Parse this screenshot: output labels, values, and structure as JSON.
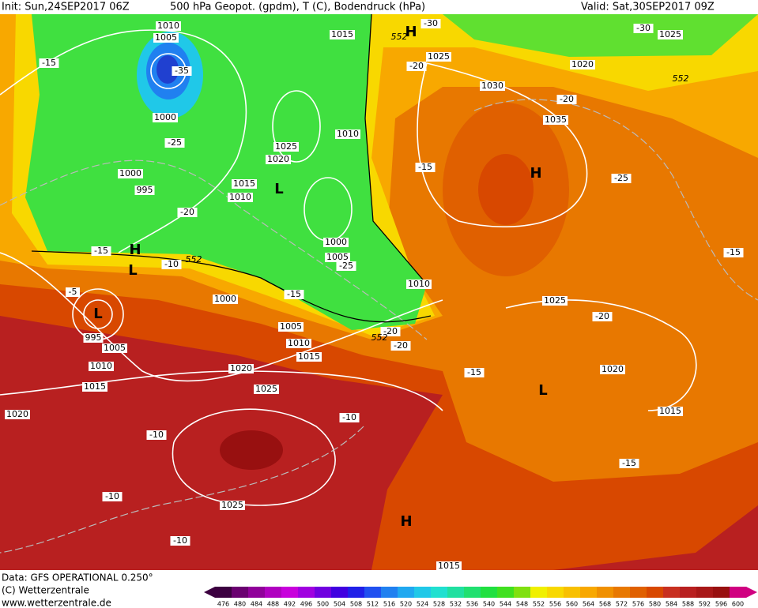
{
  "header": {
    "init": "Init: Sun,24SEP2017 06Z",
    "title": "500 hPa Geopot. (gpdm), T (C), Bodendruck (hPa)",
    "valid": "Valid: Sat,30SEP2017 09Z"
  },
  "map": {
    "pressure_labels": [
      "1010",
      "1005",
      "1015",
      "1025",
      "1025",
      "1020",
      "1030",
      "1035",
      "1000",
      "1025",
      "1020",
      "1010",
      "1000",
      "995",
      "1015",
      "1010",
      "1000",
      "1005",
      "1010",
      "1000",
      "1025",
      "1005",
      "1010",
      "1015",
      "995",
      "1005",
      "1010",
      "1020",
      "1020",
      "1015",
      "1025",
      "1015",
      "1020",
      "1025",
      "1015"
    ],
    "temperature_labels": [
      "-15",
      "-30",
      "-30",
      "-35",
      "-25",
      "-20",
      "-15",
      "-10",
      "-5",
      "-20",
      "-20",
      "-15",
      "-25",
      "-25",
      "-15",
      "-20",
      "-20",
      "-20",
      "-15",
      "-10",
      "-10",
      "-10",
      "-15",
      "-10",
      "-15"
    ],
    "height_labels": [
      "552",
      "552",
      "552",
      "552"
    ],
    "centers": [
      "H",
      "H",
      "L",
      "H",
      "L",
      "L",
      "L",
      "H"
    ]
  },
  "footer": {
    "source": "Data: GFS OPERATIONAL 0.250°",
    "copyright": "(C) Wetterzentrale",
    "url": "www.wetterzentrale.de"
  },
  "colorbar": {
    "labels": [
      476,
      480,
      484,
      488,
      492,
      496,
      500,
      504,
      508,
      512,
      516,
      520,
      524,
      528,
      532,
      536,
      540,
      544,
      548,
      552,
      556,
      560,
      564,
      568,
      572,
      576,
      580,
      584,
      588,
      592,
      596,
      600
    ],
    "colors": [
      "#3c0040",
      "#6a0070",
      "#90009a",
      "#b000c0",
      "#c800dc",
      "#a000e0",
      "#7000e0",
      "#4000e0",
      "#2020e8",
      "#2050f0",
      "#2080f0",
      "#20a8f0",
      "#20c8e8",
      "#20e0d0",
      "#20e0a0",
      "#20e070",
      "#20e040",
      "#40e020",
      "#80e010",
      "#f0f000",
      "#f8d800",
      "#f8c000",
      "#f8a800",
      "#f09000",
      "#e87800",
      "#e06000",
      "#d84800",
      "#c83020",
      "#b82020",
      "#a81818",
      "#981010",
      "#d00080"
    ]
  }
}
